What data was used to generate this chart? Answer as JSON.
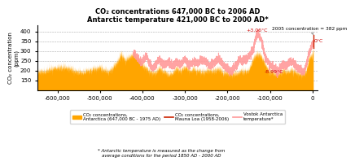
{
  "title_line1": "CO₂ concentrations 647,000 BC to 2006 AD",
  "title_line2": "Antarctic temperature 421,000 BC to 2000 AD*",
  "ylabel": "CO₂ concentration\n(ppm)",
  "ylim": [
    100,
    430
  ],
  "yticks": [
    150,
    200,
    250,
    300,
    350,
    400
  ],
  "xlim": [
    -647000,
    12000
  ],
  "xticks": [
    -600000,
    -500000,
    -400000,
    -300000,
    -200000,
    -100000,
    0
  ],
  "xticklabels": [
    "-600,000",
    "-500,000",
    "-400,000",
    "-300,000",
    "-200,000",
    "-100,000",
    "0"
  ],
  "color_co2_fill": "#FFA500",
  "color_co2_edge": "#CC8800",
  "color_co2_mauna": "#CC2200",
  "color_temp": "#FF9999",
  "color_annotation_red": "#CC0000",
  "annotation_conc": "2005 concentration = 382 ppm",
  "annotation_temp_high": "+3.06°C",
  "annotation_temp_low": "-8.99°C",
  "annotation_zero": "0°C",
  "legend_co2_ant": "CO₂ concentrations,\nAntarctica (647,000 BC - 1975 AD)",
  "legend_co2_mauna": "CO₂ concentrations,\nMauna Loa (1958-2006)",
  "legend_temp": "Vostok Antarctica\ntemperature*",
  "footnote": "* Antarctic temperature is measured as the change from\naverage conditions for the period 1850 AD - 2000 AD",
  "bg_color": "#FFFFFF",
  "plot_bg": "#FFFFFF"
}
